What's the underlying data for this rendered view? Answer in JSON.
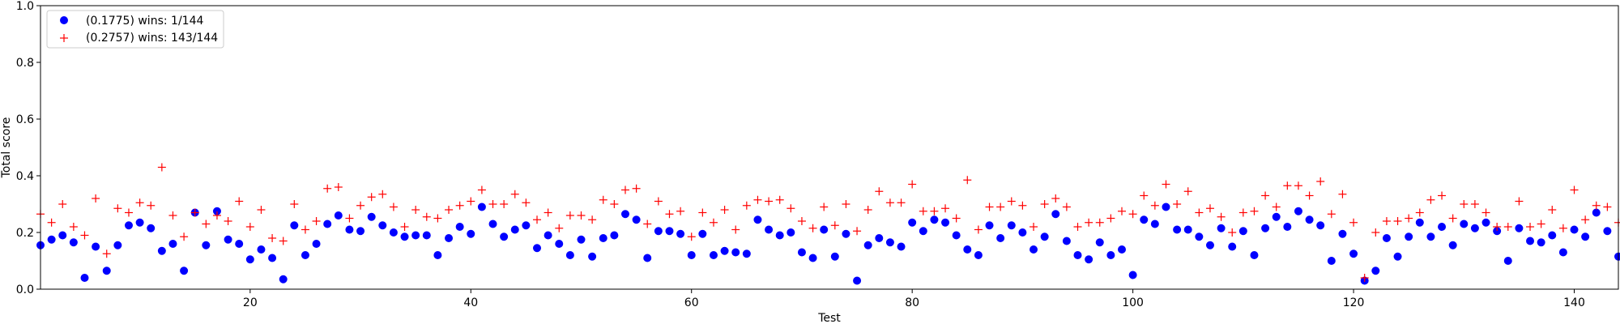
{
  "chart_data": {
    "type": "scatter",
    "xlabel": "Test",
    "ylabel": "Total score",
    "xlim": [
      1,
      144
    ],
    "ylim": [
      0,
      1.0
    ],
    "x_ticks": [
      20,
      40,
      60,
      80,
      100,
      120,
      140
    ],
    "x_tick_labels": [
      "20",
      "40",
      "60",
      "80",
      "100",
      "120",
      "140"
    ],
    "y_ticks": [
      0.0,
      0.2,
      0.4,
      0.6,
      0.8,
      1.0
    ],
    "y_tick_labels": [
      "0.0",
      "0.2",
      "0.4",
      "0.6",
      "0.8",
      "1.0"
    ],
    "grid": false,
    "legend_position": "top-left",
    "series": [
      {
        "name": "(0.1775) wins: 1/144",
        "marker": "circle",
        "color": "#0000ff",
        "values": [
          0.155,
          0.175,
          0.19,
          0.165,
          0.04,
          0.15,
          0.065,
          0.155,
          0.225,
          0.235,
          0.215,
          0.135,
          0.16,
          0.065,
          0.27,
          0.155,
          0.275,
          0.175,
          0.16,
          0.105,
          0.14,
          0.11,
          0.035,
          0.225,
          0.12,
          0.16,
          0.23,
          0.26,
          0.21,
          0.205,
          0.255,
          0.225,
          0.2,
          0.185,
          0.19,
          0.19,
          0.12,
          0.18,
          0.22,
          0.195,
          0.29,
          0.23,
          0.185,
          0.21,
          0.225,
          0.145,
          0.19,
          0.16,
          0.12,
          0.175,
          0.115,
          0.18,
          0.19,
          0.265,
          0.245,
          0.11,
          0.205,
          0.205,
          0.195,
          0.12,
          0.195,
          0.12,
          0.135,
          0.13,
          0.125,
          0.245,
          0.21,
          0.19,
          0.2,
          0.13,
          0.11,
          0.21,
          0.115,
          0.195,
          0.03,
          0.155,
          0.18,
          0.165,
          0.15,
          0.235,
          0.205,
          0.245,
          0.235,
          0.19,
          0.14,
          0.12,
          0.225,
          0.18,
          0.225,
          0.2,
          0.14,
          0.185,
          0.265,
          0.17,
          0.12,
          0.105,
          0.165,
          0.12,
          0.14,
          0.05,
          0.245,
          0.23,
          0.29,
          0.21,
          0.21,
          0.185,
          0.155,
          0.215,
          0.15,
          0.205,
          0.12,
          0.215,
          0.255,
          0.22,
          0.275,
          0.245,
          0.225,
          0.1,
          0.195,
          0.125,
          0.03,
          0.065,
          0.18,
          0.115,
          0.185,
          0.235,
          0.185,
          0.22,
          0.155,
          0.23,
          0.215,
          0.235,
          0.205,
          0.1,
          0.215,
          0.17,
          0.165,
          0.19,
          0.13,
          0.21,
          0.185,
          0.27,
          0.205,
          0.115
        ]
      },
      {
        "name": "(0.2757) wins: 143/144",
        "marker": "plus",
        "color": "#ff0000",
        "values": [
          0.265,
          0.235,
          0.3,
          0.22,
          0.19,
          0.32,
          0.125,
          0.285,
          0.27,
          0.305,
          0.295,
          0.43,
          0.26,
          0.185,
          0.27,
          0.23,
          0.26,
          0.24,
          0.31,
          0.22,
          0.28,
          0.18,
          0.17,
          0.3,
          0.21,
          0.24,
          0.355,
          0.36,
          0.25,
          0.295,
          0.325,
          0.335,
          0.29,
          0.22,
          0.28,
          0.255,
          0.25,
          0.28,
          0.295,
          0.31,
          0.35,
          0.3,
          0.3,
          0.335,
          0.305,
          0.245,
          0.27,
          0.215,
          0.26,
          0.26,
          0.245,
          0.315,
          0.3,
          0.35,
          0.355,
          0.23,
          0.31,
          0.265,
          0.275,
          0.185,
          0.27,
          0.235,
          0.28,
          0.21,
          0.295,
          0.315,
          0.31,
          0.315,
          0.285,
          0.24,
          0.215,
          0.29,
          0.225,
          0.3,
          0.205,
          0.28,
          0.345,
          0.305,
          0.305,
          0.37,
          0.275,
          0.275,
          0.285,
          0.25,
          0.385,
          0.21,
          0.29,
          0.29,
          0.31,
          0.295,
          0.22,
          0.3,
          0.32,
          0.29,
          0.22,
          0.235,
          0.235,
          0.25,
          0.275,
          0.265,
          0.33,
          0.295,
          0.37,
          0.3,
          0.345,
          0.27,
          0.285,
          0.255,
          0.2,
          0.27,
          0.275,
          0.33,
          0.29,
          0.365,
          0.365,
          0.33,
          0.38,
          0.265,
          0.335,
          0.235,
          0.04,
          0.2,
          0.24,
          0.24,
          0.25,
          0.27,
          0.315,
          0.33,
          0.25,
          0.3,
          0.3,
          0.27,
          0.22,
          0.22,
          0.31,
          0.22,
          0.23,
          0.28,
          0.215,
          0.35,
          0.245,
          0.295,
          0.29,
          0.235
        ]
      }
    ]
  }
}
